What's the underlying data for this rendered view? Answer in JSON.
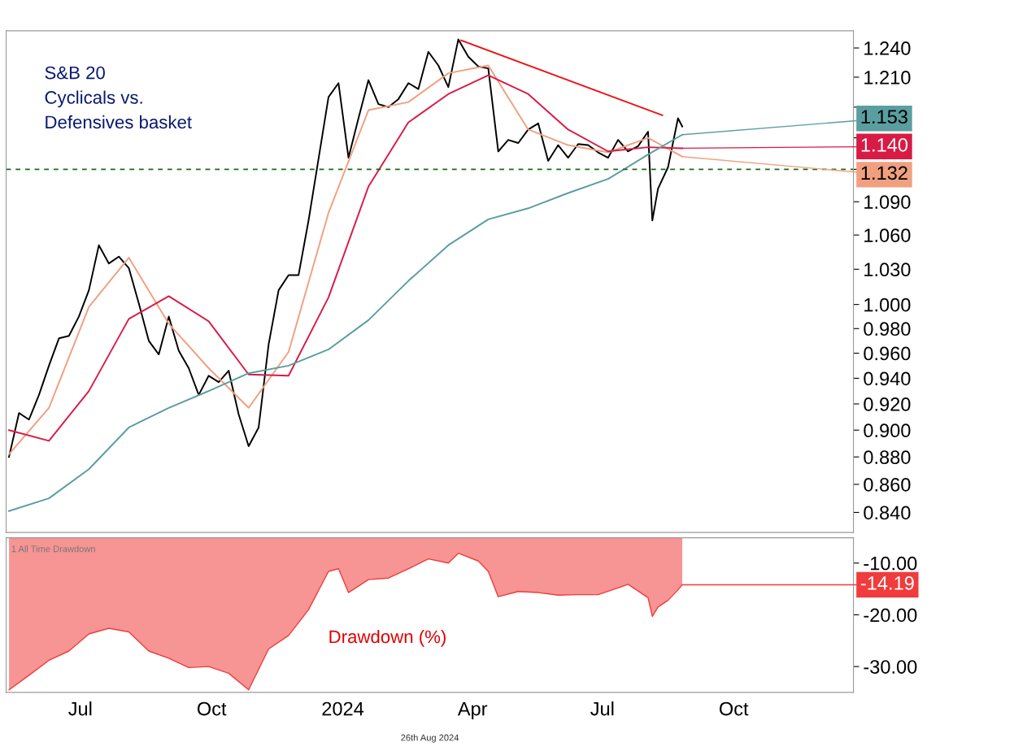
{
  "chart_data": [
    {
      "type": "line",
      "log": true,
      "xlim": [
        "2023-05-10",
        "2024-12-24"
      ],
      "ylim": [
        0.826,
        1.258
      ],
      "tick_labels": "y",
      "yticks": [
        {
          "value": 0.84,
          "label": "0.840"
        },
        {
          "value": 0.86,
          "label": "0.860"
        },
        {
          "value": 0.88,
          "label": "0.880"
        },
        {
          "value": 0.9,
          "label": "0.900"
        },
        {
          "value": 0.92,
          "label": "0.920"
        },
        {
          "value": 0.94,
          "label": "0.940"
        },
        {
          "value": 0.96,
          "label": "0.960"
        },
        {
          "value": 0.98,
          "label": "0.980"
        },
        {
          "value": 1.0,
          "label": "1.000"
        },
        {
          "value": 1.03,
          "label": "1.030"
        },
        {
          "value": 1.06,
          "label": "1.060"
        },
        {
          "value": 1.09,
          "label": "1.090"
        },
        {
          "value": 1.12,
          "label": null
        },
        {
          "value": 1.15,
          "label": null
        },
        {
          "value": 1.18,
          "label": null
        },
        {
          "value": 1.21,
          "label": "1.210"
        },
        {
          "value": 1.24,
          "label": "1.240"
        }
      ],
      "ref_lines": [
        {
          "axis": "y",
          "value": 1.12,
          "color": "#1a6b1a",
          "line_style": "dashed"
        }
      ],
      "annotations": [
        "S&B 20\nCyclicals vs.\nDefensives basket"
      ],
      "series": [
        {
          "color": "#000000",
          "x": [
            "2023-05-12",
            "2023-05-19",
            "2023-05-26",
            "2023-06-02",
            "2023-06-09",
            "2023-06-16",
            "2023-06-23",
            "2023-06-30",
            "2023-07-07",
            "2023-07-14",
            "2023-07-21",
            "2023-07-28",
            "2023-08-04",
            "2023-08-11",
            "2023-08-18",
            "2023-08-25",
            "2023-09-01",
            "2023-09-08",
            "2023-09-15",
            "2023-09-22",
            "2023-09-29",
            "2023-10-06",
            "2023-10-13",
            "2023-10-20",
            "2023-10-27",
            "2023-11-03",
            "2023-11-10",
            "2023-11-17",
            "2023-11-24",
            "2023-12-01",
            "2023-12-08",
            "2023-12-15",
            "2023-12-22",
            "2023-12-29",
            "2024-01-05",
            "2024-01-12",
            "2024-01-19",
            "2024-01-26",
            "2024-02-02",
            "2024-02-09",
            "2024-02-16",
            "2024-02-23",
            "2024-03-01",
            "2024-03-08",
            "2024-03-15",
            "2024-03-22",
            "2024-03-29",
            "2024-04-05",
            "2024-04-12",
            "2024-04-19",
            "2024-04-26",
            "2024-05-03",
            "2024-05-10",
            "2024-05-17",
            "2024-05-24",
            "2024-05-31",
            "2024-06-07",
            "2024-06-14",
            "2024-06-21",
            "2024-06-28",
            "2024-07-05",
            "2024-07-12",
            "2024-07-19",
            "2024-07-26",
            "2024-08-02",
            "2024-08-05",
            "2024-08-09",
            "2024-08-16",
            "2024-08-23",
            "2024-08-26"
          ],
          "values": [
            0.88,
            0.913,
            0.908,
            0.927,
            0.95,
            0.972,
            0.974,
            0.99,
            1.012,
            1.051,
            1.035,
            1.041,
            1.031,
            1.001,
            0.97,
            0.959,
            0.99,
            0.962,
            0.948,
            0.927,
            0.942,
            0.937,
            0.946,
            0.912,
            0.888,
            0.902,
            0.967,
            1.012,
            1.025,
            1.025,
            1.073,
            1.13,
            1.19,
            1.204,
            1.131,
            1.169,
            1.207,
            1.183,
            1.18,
            1.188,
            1.204,
            1.198,
            1.236,
            1.222,
            1.2,
            1.249,
            1.231,
            1.221,
            1.219,
            1.137,
            1.148,
            1.145,
            1.158,
            1.164,
            1.128,
            1.143,
            1.131,
            1.144,
            1.143,
            1.136,
            1.131,
            1.148,
            1.137,
            1.142,
            1.156,
            1.073,
            1.102,
            1.122,
            1.169,
            1.161
          ]
        },
        {
          "color": "#f0a080",
          "x": [
            "2023-05-12",
            "2023-06-09",
            "2023-07-07",
            "2023-08-04",
            "2023-09-01",
            "2023-09-29",
            "2023-10-27",
            "2023-11-24",
            "2023-12-22",
            "2024-01-19",
            "2024-02-16",
            "2024-03-15",
            "2024-04-12",
            "2024-05-10",
            "2024-06-07",
            "2024-07-05",
            "2024-08-02",
            "2024-08-26"
          ],
          "values": [
            0.882,
            0.917,
            0.998,
            1.04,
            0.984,
            0.948,
            0.917,
            0.961,
            1.08,
            1.177,
            1.185,
            1.214,
            1.222,
            1.158,
            1.143,
            1.136,
            1.15,
            1.132
          ],
          "value_labels": [
            null,
            null,
            null,
            null,
            null,
            null,
            null,
            null,
            null,
            null,
            null,
            null,
            null,
            null,
            null,
            null,
            null,
            "1.132"
          ]
        },
        {
          "color": "#d81b45",
          "x": [
            "2023-05-12",
            "2023-06-09",
            "2023-07-07",
            "2023-08-04",
            "2023-09-01",
            "2023-09-29",
            "2023-10-27",
            "2023-11-24",
            "2023-12-22",
            "2024-01-19",
            "2024-02-16",
            "2024-03-15",
            "2024-04-12",
            "2024-05-10",
            "2024-06-07",
            "2024-07-05",
            "2024-08-02",
            "2024-08-26"
          ],
          "values": [
            0.9,
            0.892,
            0.93,
            0.988,
            1.007,
            0.986,
            0.943,
            0.942,
            1.006,
            1.104,
            1.165,
            1.193,
            1.212,
            1.193,
            1.158,
            1.137,
            1.141,
            1.14
          ],
          "value_labels": [
            null,
            null,
            null,
            null,
            null,
            null,
            null,
            null,
            null,
            null,
            null,
            null,
            null,
            null,
            null,
            null,
            null,
            "1.140"
          ]
        },
        {
          "color": "#5a9ea0",
          "x": [
            "2023-05-12",
            "2023-06-09",
            "2023-07-07",
            "2023-08-04",
            "2023-09-01",
            "2023-09-29",
            "2023-10-27",
            "2023-11-24",
            "2023-12-22",
            "2024-01-19",
            "2024-02-16",
            "2024-03-15",
            "2024-04-12",
            "2024-05-10",
            "2024-06-07",
            "2024-07-05",
            "2024-08-02",
            "2024-08-26"
          ],
          "values": [
            0.841,
            0.85,
            0.871,
            0.902,
            0.917,
            0.93,
            0.944,
            0.95,
            0.963,
            0.987,
            1.02,
            1.051,
            1.074,
            1.084,
            1.098,
            1.111,
            1.134,
            1.153
          ],
          "value_labels": [
            null,
            null,
            null,
            null,
            null,
            null,
            null,
            null,
            null,
            null,
            null,
            null,
            null,
            null,
            null,
            null,
            null,
            "1.153"
          ]
        },
        {
          "color": "#ee1111",
          "x": [
            "2024-03-24",
            "2024-08-12"
          ],
          "values": [
            1.248,
            1.172
          ]
        }
      ]
    },
    {
      "type": "area",
      "xlim": [
        "2023-05-10",
        "2024-12-24"
      ],
      "ylim": [
        -35.0,
        -5.1
      ],
      "xticks": [
        {
          "value": "2023-07-01",
          "label": "Jul"
        },
        {
          "value": "2023-10-01",
          "label": "Oct"
        },
        {
          "value": "2024-01-01",
          "label": "2024"
        },
        {
          "value": "2024-04-01",
          "label": "Apr"
        },
        {
          "value": "2024-07-01",
          "label": "Jul"
        },
        {
          "value": "2024-10-01",
          "label": "Oct"
        }
      ],
      "yticks": [
        {
          "value": -10,
          "label": "-10.00"
        },
        {
          "value": -20,
          "label": "-20.00"
        },
        {
          "value": -30,
          "label": "-30.00"
        }
      ],
      "annotations": [
        "1 All Time Drawdown",
        "Drawdown (%)",
        "26th Aug 2024"
      ],
      "series": [
        {
          "color": "#f03c3c",
          "x": [
            "2023-05-12",
            "2023-05-26",
            "2023-06-09",
            "2023-06-23",
            "2023-07-07",
            "2023-07-21",
            "2023-08-04",
            "2023-08-18",
            "2023-09-01",
            "2023-09-15",
            "2023-09-29",
            "2023-10-13",
            "2023-10-27",
            "2023-11-10",
            "2023-11-24",
            "2023-12-08",
            "2023-12-22",
            "2023-12-29",
            "2024-01-05",
            "2024-01-19",
            "2024-02-02",
            "2024-02-16",
            "2024-03-01",
            "2024-03-15",
            "2024-03-22",
            "2024-04-05",
            "2024-04-12",
            "2024-04-19",
            "2024-05-03",
            "2024-05-17",
            "2024-05-31",
            "2024-06-14",
            "2024-06-28",
            "2024-07-12",
            "2024-07-19",
            "2024-08-02",
            "2024-08-05",
            "2024-08-09",
            "2024-08-16",
            "2024-08-23",
            "2024-08-26"
          ],
          "values": [
            -34.5,
            -31.7,
            -28.8,
            -27.0,
            -23.7,
            -22.6,
            -23.3,
            -27.0,
            -28.4,
            -30.2,
            -30.0,
            -31.3,
            -34.5,
            -26.6,
            -24.0,
            -19.0,
            -11.6,
            -11.1,
            -15.7,
            -13.2,
            -12.9,
            -11.1,
            -9.2,
            -10.0,
            -8.1,
            -9.6,
            -11.6,
            -16.5,
            -15.5,
            -15.7,
            -16.2,
            -16.1,
            -16.1,
            -14.8,
            -14.1,
            -16.7,
            -20.3,
            -18.5,
            -17.2,
            -15.2,
            -14.19
          ],
          "value_labels": [
            null,
            null,
            null,
            null,
            null,
            null,
            null,
            null,
            null,
            null,
            null,
            null,
            null,
            null,
            null,
            null,
            null,
            null,
            null,
            null,
            null,
            null,
            null,
            null,
            null,
            null,
            null,
            null,
            null,
            null,
            null,
            null,
            null,
            null,
            null,
            null,
            null,
            null,
            null,
            null,
            "-14.19"
          ]
        }
      ]
    }
  ]
}
